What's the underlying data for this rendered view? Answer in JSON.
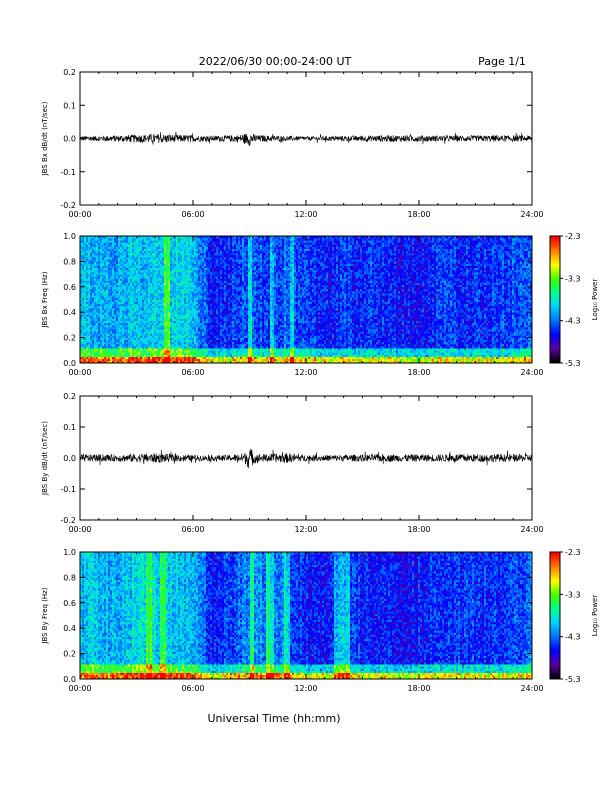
{
  "header": {
    "title": "2022/06/30  00:00-24:00 UT",
    "page_label": "Page 1/1"
  },
  "footer": {
    "xlabel": "Universal Time (hh:mm)"
  },
  "colors": {
    "trace": "#000000",
    "colormap": [
      "#000000",
      "#5a00a0",
      "#0000ff",
      "#0070ff",
      "#00d0ff",
      "#00ff90",
      "#40ff00",
      "#ffff00",
      "#ff8000",
      "#ff0000"
    ]
  },
  "chart_data": [
    {
      "id": "bx_dbdt",
      "type": "line",
      "ylabel": "JBS Bx dB/dt (nT/sec)",
      "xlim": [
        "00:00",
        "24:00"
      ],
      "ylim": [
        -0.2,
        0.2
      ],
      "xticks": [
        "00:00",
        "06:00",
        "12:00",
        "18:00",
        "24:00"
      ],
      "yticks": [
        "0.2",
        "0.1",
        "0.0",
        "-0.1",
        "-0.2"
      ],
      "series": [
        {
          "x_hours": [
            0,
            1,
            2,
            3,
            4,
            5,
            6,
            7,
            8,
            8.5,
            8.8,
            9,
            9.2,
            9.5,
            10,
            11,
            12,
            13,
            14,
            15,
            16,
            17,
            18,
            19,
            20,
            21,
            22,
            23,
            24
          ],
          "amplitude": [
            0.008,
            0.008,
            0.01,
            0.012,
            0.014,
            0.012,
            0.01,
            0.008,
            0.01,
            0.012,
            0.016,
            0.022,
            0.014,
            0.01,
            0.009,
            0.008,
            0.006,
            0.007,
            0.008,
            0.009,
            0.01,
            0.01,
            0.01,
            0.009,
            0.009,
            0.009,
            0.01,
            0.009,
            0.009
          ]
        }
      ]
    },
    {
      "id": "bx_spec",
      "type": "heatmap",
      "ylabel": "JBS Bx Freq (Hz)",
      "xlim": [
        "00:00",
        "24:00"
      ],
      "ylim": [
        0.0,
        1.0
      ],
      "xticks": [
        "00:00",
        "06:00",
        "12:00",
        "18:00",
        "24:00"
      ],
      "yticks": [
        "1.0",
        "0.8",
        "0.6",
        "0.4",
        "0.2",
        "0.0"
      ],
      "colorbar": {
        "label": "Log₁₀ Power",
        "ticks": [
          "-2.3",
          "-3.3",
          "-4.3",
          "-5.3"
        ],
        "range": [
          -5.3,
          -2.3
        ]
      },
      "hour_profile": [
        -4.0,
        -4.1,
        -4.1,
        -4.0,
        -4.0,
        -3.9,
        -4.0,
        -4.6,
        -4.5,
        -4.3,
        -4.5,
        -4.3,
        -4.5,
        -4.6,
        -4.5,
        -4.5,
        -4.5,
        -4.6,
        -4.6,
        -4.5,
        -4.5,
        -4.5,
        -4.5,
        -4.4,
        -4.4
      ],
      "bright_bands_hours": [
        [
          4.5,
          4.8
        ],
        [
          8.9,
          9.1
        ],
        [
          10.1,
          10.3
        ],
        [
          11.2,
          11.4
        ]
      ]
    },
    {
      "id": "by_dbdt",
      "type": "line",
      "ylabel": "JBS By dB/dt (nT/sec)",
      "xlim": [
        "00:00",
        "24:00"
      ],
      "ylim": [
        -0.2,
        0.2
      ],
      "xticks": [
        "00:00",
        "06:00",
        "12:00",
        "18:00",
        "24:00"
      ],
      "yticks": [
        "0.2",
        "0.1",
        "0.0",
        "-0.1",
        "-0.2"
      ],
      "series": [
        {
          "x_hours": [
            0,
            1,
            2,
            3,
            4,
            5,
            6,
            7,
            8,
            8.5,
            8.8,
            9,
            9.2,
            9.5,
            10,
            11,
            12,
            13,
            14,
            15,
            16,
            17,
            18,
            19,
            20,
            21,
            22,
            23,
            24
          ],
          "amplitude": [
            0.012,
            0.012,
            0.011,
            0.014,
            0.016,
            0.012,
            0.01,
            0.009,
            0.01,
            0.014,
            0.02,
            0.04,
            0.02,
            0.014,
            0.013,
            0.016,
            0.01,
            0.01,
            0.011,
            0.011,
            0.012,
            0.012,
            0.012,
            0.012,
            0.013,
            0.013,
            0.013,
            0.012,
            0.012
          ]
        }
      ]
    },
    {
      "id": "by_spec",
      "type": "heatmap",
      "ylabel": "JBS By Freq (Hz)",
      "xlim": [
        "00:00",
        "24:00"
      ],
      "ylim": [
        0.0,
        1.0
      ],
      "xticks": [
        "00:00",
        "06:00",
        "12:00",
        "18:00",
        "24:00"
      ],
      "yticks": [
        "1.0",
        "0.8",
        "0.6",
        "0.4",
        "0.2",
        "0.0"
      ],
      "colorbar": {
        "label": "Log₁₀ Power",
        "ticks": [
          "-2.3",
          "-3.3",
          "-4.3",
          "-5.3"
        ],
        "range": [
          -5.3,
          -2.3
        ]
      },
      "hour_profile": [
        -4.0,
        -4.0,
        -4.1,
        -3.9,
        -3.9,
        -4.0,
        -4.0,
        -4.6,
        -4.5,
        -4.2,
        -4.2,
        -4.3,
        -4.6,
        -4.6,
        -4.5,
        -4.5,
        -4.5,
        -4.6,
        -4.6,
        -4.5,
        -4.5,
        -4.5,
        -4.5,
        -4.4,
        -4.3
      ],
      "bright_bands_hours": [
        [
          3.5,
          3.8
        ],
        [
          4.3,
          4.6
        ],
        [
          9.0,
          9.2
        ],
        [
          9.9,
          10.3
        ],
        [
          10.8,
          11.2
        ],
        [
          13.5,
          14.3
        ]
      ]
    }
  ]
}
